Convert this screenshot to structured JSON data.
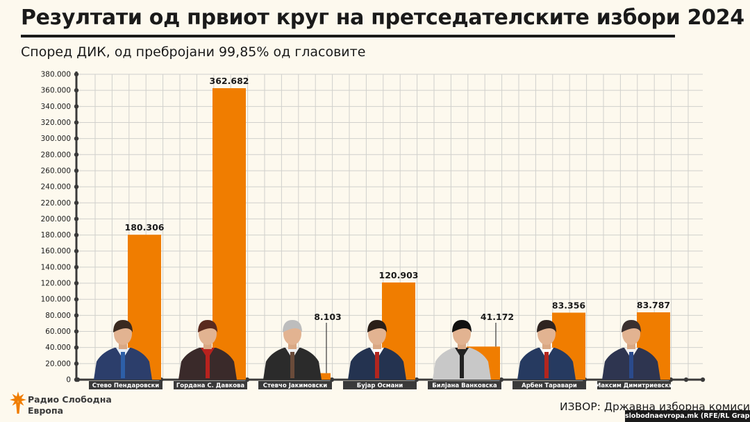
{
  "chart_data": {
    "type": "bar",
    "title": "Резултати од првиот круг на претседателските избори 2024",
    "subtitle": "Според ДИК, од пребројани 99,85% од гласовите",
    "categories": [
      "Стево Пендаровски",
      "Гордана С. Давкова",
      "Стевчо Јакимовски",
      "Бујар Османи",
      "Билјана Ванковска",
      "Арбен Таравари",
      "Максим Димитриевски"
    ],
    "values": [
      180306,
      362682,
      8103,
      120903,
      41172,
      83356,
      83787
    ],
    "value_labels": [
      "180.306",
      "362.682",
      "8.103",
      "120.903",
      "41.172",
      "83.356",
      "83.787"
    ],
    "yticks": [
      "0",
      "20.000",
      "40.000",
      "60.000",
      "80.000",
      "100.000",
      "120.000",
      "140.000",
      "160.000",
      "180.000",
      "200.000",
      "220.000",
      "240.000",
      "260.000",
      "280.000",
      "300.000",
      "320.000",
      "340.000",
      "360.000",
      "380.000"
    ],
    "ylim": [
      0,
      380000
    ],
    "xlabel": "",
    "ylabel": "",
    "grid": true,
    "bar_color": "#f07d00",
    "label_box_color": "#3a3a3a"
  },
  "footer": {
    "logo_line1": "Радио Слободна",
    "logo_line2": "Европа",
    "source": "ИЗВОР: Државна изборна комисија",
    "credit": "slobodnaevropa.mk (RFE/RL Graphics)",
    "logo_color": "#f07d00"
  }
}
